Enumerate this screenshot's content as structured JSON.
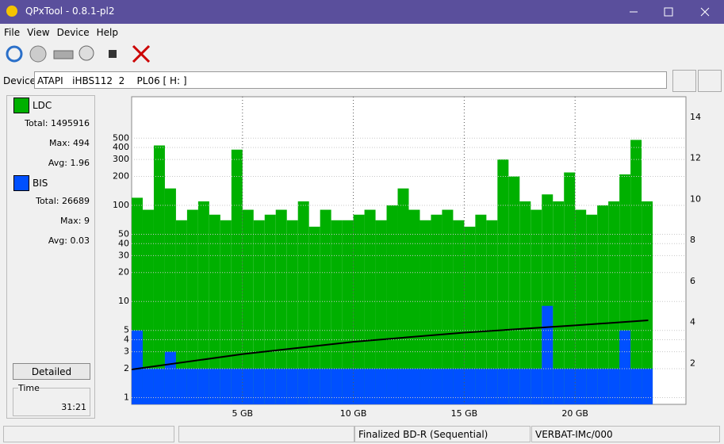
{
  "window": {
    "title": "QPxTool - 0.8.1-pl2"
  },
  "menu": [
    "File",
    "View",
    "Device",
    "Help"
  ],
  "device": {
    "label": "Device:",
    "value": "ATAPI   iHBS112  2    PL06 [ H: ]"
  },
  "panel": {
    "ldc": {
      "name": "LDC",
      "color": "#00b000",
      "total_label": "Total:",
      "total": 1495916,
      "max_label": "Max:",
      "max": 494,
      "avg_label": "Avg:",
      "avg": 1.96
    },
    "bis": {
      "name": "BIS",
      "color": "#0050ff",
      "total_label": "Total:",
      "total": 26689,
      "max_label": "Max:",
      "max": 9,
      "avg_label": "Avg:",
      "avg": 0.03
    },
    "detailed_button": "Detailed",
    "time": {
      "label": "Time",
      "value": "31:21"
    }
  },
  "status": [
    "Finalized BD-R (Sequential)",
    "VERBAT-IMc/000"
  ],
  "chart_data": {
    "type": "bar",
    "log_y": true,
    "grid": true,
    "x": [
      0.25,
      0.75,
      1.25,
      1.75,
      2.25,
      2.75,
      3.25,
      3.75,
      4.25,
      4.75,
      5.25,
      5.75,
      6.25,
      6.75,
      7.25,
      7.75,
      8.25,
      8.75,
      9.25,
      9.75,
      10.25,
      10.75,
      11.25,
      11.75,
      12.25,
      12.75,
      13.25,
      13.75,
      14.25,
      14.75,
      15.25,
      15.75,
      16.25,
      16.75,
      17.25,
      17.75,
      18.25,
      18.75,
      19.25,
      19.75,
      20.25,
      20.75,
      21.25,
      21.75,
      22.25,
      22.75,
      23.25
    ],
    "series": [
      {
        "name": "LDC",
        "color": "#00b000",
        "values": [
          120,
          90,
          420,
          150,
          70,
          90,
          110,
          80,
          70,
          380,
          90,
          70,
          80,
          90,
          70,
          110,
          60,
          90,
          70,
          70,
          80,
          90,
          70,
          100,
          150,
          90,
          70,
          80,
          90,
          70,
          60,
          80,
          70,
          300,
          200,
          110,
          90,
          130,
          110,
          220,
          90,
          80,
          100,
          110,
          210,
          480,
          110
        ]
      },
      {
        "name": "BIS",
        "color": "#0050ff",
        "values": [
          5,
          2,
          2,
          3,
          2,
          2,
          2,
          2,
          2,
          2,
          2,
          2,
          2,
          2,
          2,
          2,
          2,
          2,
          2,
          2,
          2,
          2,
          2,
          2,
          2,
          2,
          2,
          2,
          2,
          2,
          2,
          2,
          2,
          2,
          2,
          2,
          2,
          9,
          2,
          2,
          2,
          2,
          2,
          2,
          5,
          2,
          2
        ]
      },
      {
        "name": "Speed",
        "color": "#000000",
        "axis": "y2",
        "x": [
          0,
          5,
          10,
          15,
          20,
          23.3
        ],
        "values": [
          1.7,
          2.45,
          3.05,
          3.5,
          3.85,
          4.1
        ]
      }
    ],
    "xlim": [
      0,
      25
    ],
    "xticks": [
      {
        "value": 5,
        "label": "5 GB"
      },
      {
        "value": 10,
        "label": "10 GB"
      },
      {
        "value": 15,
        "label": "15 GB"
      },
      {
        "value": 20,
        "label": "20 GB"
      }
    ],
    "ylim": [
      0.85,
      1350
    ],
    "yticks": [
      1,
      2,
      3,
      4,
      5,
      10,
      20,
      30,
      40,
      50,
      100,
      200,
      300,
      400,
      500
    ],
    "y2lim": [
      0,
      15
    ],
    "y2ticks": [
      2,
      4,
      6,
      8,
      10,
      12,
      14
    ]
  }
}
